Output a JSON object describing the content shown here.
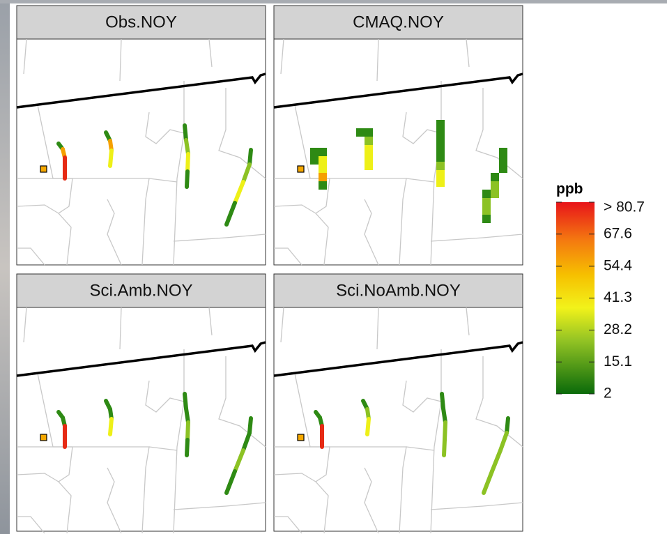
{
  "panels": [
    {
      "title": "Obs.NOY"
    },
    {
      "title": "CMAQ.NOY"
    },
    {
      "title": "Sci.Amb.NOY"
    },
    {
      "title": "Sci.NoAmb.NOY"
    }
  ],
  "legend": {
    "title": "ppb",
    "lim": [
      2,
      80.7
    ],
    "ticks": [
      {
        "value": 80.7,
        "label": "> 80.7"
      },
      67.6,
      54.4,
      41.3,
      28.2,
      15.1,
      2
    ]
  }
}
